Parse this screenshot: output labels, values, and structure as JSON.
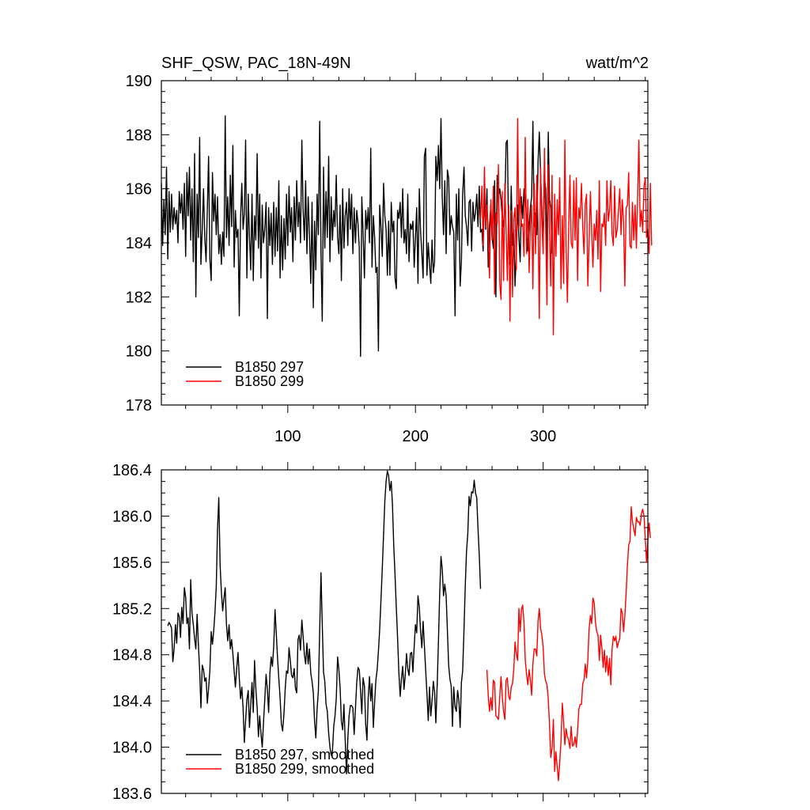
{
  "chart_data": [
    {
      "type": "line",
      "title": "SHF_QSW, PAC_18N-49N",
      "units": "watt/m^2",
      "xlim": [
        1,
        382
      ],
      "ylim": [
        178,
        190
      ],
      "x_ticks": [
        100,
        200,
        300
      ],
      "y_ticks": [
        178,
        180,
        182,
        184,
        186,
        188,
        190
      ],
      "y_tick_labels": [
        "178",
        "180",
        "182",
        "184",
        "186",
        "188",
        "190"
      ],
      "legend_position": "bottom-left",
      "series": [
        {
          "name": "B1850 297",
          "color": "#000000",
          "x_start": 1,
          "values": [
            186.2,
            183.9,
            185.6,
            184.3,
            186.8,
            183.4,
            185.9,
            184.4,
            185.8,
            184.5,
            185.3,
            184.7,
            185.2,
            184.0,
            185.9,
            185.1,
            185.8,
            184.5,
            186.2,
            183.5,
            186.6,
            185.0,
            186.8,
            184.1,
            186.0,
            183.3,
            187.3,
            182.0,
            185.8,
            184.2,
            187.9,
            183.2,
            184.5,
            186.0,
            184.2,
            183.3,
            185.2,
            187.2,
            183.4,
            182.6,
            186.6,
            184.8,
            185.8,
            184.3,
            185.7,
            183.6,
            184.3,
            183.2,
            184.4,
            183.5,
            188.7,
            184.2,
            185.7,
            183.9,
            186.5,
            184.6,
            187.6,
            183.1,
            185.2,
            184.2,
            184.5,
            181.3,
            184.9,
            186.2,
            184.5,
            185.1,
            187.8,
            182.7,
            185.8,
            184.2,
            183.0,
            185.8,
            182.6,
            185.0,
            184.1,
            187.3,
            183.8,
            185.8,
            182.7,
            185.4,
            184.0,
            184.5,
            185.5,
            181.2,
            185.3,
            183.9,
            185.1,
            183.2,
            185.5,
            183.5,
            185.3,
            183.7,
            186.3,
            182.7,
            185.0,
            183.0,
            184.9,
            183.4,
            185.8,
            183.9,
            186.1,
            184.4,
            185.3,
            183.3,
            185.7,
            184.1,
            186.3,
            184.6,
            185.5,
            184.0,
            187.8,
            185.2,
            184.1,
            186.3,
            183.6,
            185.7,
            184.3,
            182.5,
            185.5,
            181.6,
            184.8,
            183.0,
            185.8,
            184.3,
            188.5,
            183.6,
            181.1,
            186.8,
            183.8,
            185.9,
            184.2,
            187.2,
            183.3,
            185.7,
            184.1,
            185.2,
            184.6,
            186.5,
            184.2,
            183.6,
            185.4,
            182.6,
            186.0,
            183.8,
            185.0,
            185.5,
            183.9,
            186.0,
            184.5,
            185.8,
            183.6,
            185.3,
            184.0,
            185.2,
            184.7,
            183.8,
            179.8,
            185.7,
            184.4,
            182.7,
            185.2,
            184.5,
            185.3,
            184.0,
            187.5,
            183.1,
            185.0,
            184.2,
            182.9,
            183.1,
            180.0,
            185.4,
            184.6,
            183.5,
            186.2,
            185.0,
            184.5,
            182.8,
            184.8,
            182.8,
            185.5,
            184.4,
            184.8,
            182.7,
            182.3,
            185.2,
            184.9,
            185.5,
            184.2,
            186.0,
            184.0,
            184.5,
            183.6,
            185.8,
            183.3,
            184.7,
            184.5,
            184.8,
            183.1,
            184.2,
            185.3,
            182.5,
            186.0,
            184.4,
            183.6,
            182.7,
            187.2,
            187.5,
            182.8,
            184.0,
            183.2,
            182.5,
            184.1,
            182.9,
            183.3,
            187.2,
            186.3,
            187.6,
            186.0,
            188.6,
            185.7,
            184.3,
            186.3,
            183.6,
            186.7,
            186.4,
            184.3,
            185.0,
            184.6,
            184.4,
            181.3,
            185.8,
            184.1,
            186.0,
            182.4,
            183.3,
            185.8,
            186.8,
            185.0,
            184.6,
            183.9,
            185.5,
            185.6,
            183.7,
            185.5,
            184.8,
            185.1,
            185.8,
            184.6,
            186.1,
            184.4,
            184.5,
            183.7,
            185.9,
            184.5,
            186.0,
            183.1,
            184.6,
            185.4,
            184.2,
            183.8,
            186.3,
            182.0,
            186.5,
            185.7,
            186.0,
            185.6,
            184.9,
            184.6,
            185.3,
            187.7,
            187.8,
            184.0,
            183.2,
            186.1,
            183.9,
            184.5,
            182.4,
            183.7,
            185.4,
            184.2,
            183.3,
            185.7,
            184.9,
            186.0,
            185.7,
            184.9,
            183.7,
            184.6,
            185.3,
            185.7,
            188.5,
            184.6,
            185.1,
            184.3,
            187.0,
            188.1,
            186.5,
            185.3,
            184.0,
            186.4,
            186.0,
            183.3,
            188.1,
            185.6,
            185.3,
            183.6
          ]
        },
        {
          "name": "B1850 299",
          "color": "#ff0000",
          "x_start": 251,
          "values": [
            184.9,
            186.1,
            183.9,
            186.8,
            184.6,
            185.4,
            184.4,
            182.7,
            185.6,
            184.1,
            186.1,
            182.1,
            185.1,
            184.7,
            186.9,
            182.5,
            181.9,
            185.9,
            182.6,
            186.2,
            184.5,
            182.6,
            185.4,
            181.1,
            185.2,
            182.0,
            184.9,
            185.3,
            183.0,
            188.6,
            184.5,
            186.0,
            184.6,
            184.7,
            183.5,
            187.9,
            183.6,
            185.6,
            182.9,
            184.6,
            185.4,
            182.3,
            186.2,
            183.6,
            186.5,
            184.7,
            181.2,
            186.8,
            184.8,
            183.6,
            187.5,
            184.5,
            181.7,
            186.9,
            184.5,
            182.4,
            186.5,
            180.6,
            185.8,
            183.5,
            185.6,
            184.3,
            186.4,
            182.3,
            185.0,
            182.5,
            187.8,
            183.9,
            181.8,
            184.5,
            186.5,
            184.0,
            183.8,
            186.3,
            184.1,
            186.4,
            182.6,
            185.3,
            184.9,
            186.2,
            184.6,
            183.6,
            185.4,
            185.8,
            182.4,
            184.0,
            185.9,
            184.4,
            183.1,
            184.7,
            184.1,
            185.2,
            183.4,
            186.3,
            182.2,
            184.7,
            184.6,
            185.1,
            183.9,
            186.3,
            184.8,
            185.2,
            186.3,
            184.3,
            183.9,
            186.1,
            184.2,
            184.5,
            185.2,
            186.0,
            184.3,
            185.6,
            184.8,
            182.4,
            185.3,
            185.4,
            186.6,
            183.9,
            183.8,
            185.5,
            184.1,
            185.4,
            183.8,
            185.7,
            187.8,
            184.6,
            185.2,
            184.4,
            186.1,
            186.4,
            184.2,
            184.5,
            183.6,
            186.2,
            183.9
          ]
        }
      ],
      "legend": [
        {
          "label": "B1850 297",
          "color": "#000000"
        },
        {
          "label": "B1850 299",
          "color": "#ff0000"
        }
      ]
    },
    {
      "type": "line",
      "xlim": [
        1,
        382
      ],
      "ylim": [
        183.6,
        186.4
      ],
      "x_ticks": [
        100,
        200,
        300
      ],
      "y_ticks": [
        183.6,
        184.0,
        184.4,
        184.8,
        185.2,
        185.6,
        186.0,
        186.4
      ],
      "y_tick_labels": [
        "183.6",
        "184.0",
        "184.4",
        "184.8",
        "185.2",
        "185.6",
        "186.0",
        "186.4"
      ],
      "legend_position": "bottom-left",
      "series": [
        {
          "name": "B1850 297, smoothed",
          "color": "#000000",
          "x_start": 6,
          "values": [
            185.05,
            185.08,
            185.06,
            185.03,
            184.74,
            184.85,
            185.06,
            184.9,
            185.16,
            185.13,
            184.95,
            185.21,
            185.07,
            185.38,
            185.3,
            185.07,
            185.12,
            184.85,
            185.45,
            185.16,
            185.06,
            184.94,
            184.85,
            185.15,
            184.89,
            184.66,
            184.34,
            184.71,
            184.67,
            184.57,
            184.6,
            184.38,
            184.51,
            184.66,
            185.0,
            184.89,
            185.01,
            185.17,
            185.39,
            185.89,
            186.16,
            185.57,
            185.34,
            185.18,
            185.29,
            185.38,
            185.06,
            184.92,
            185.06,
            184.85,
            184.93,
            184.81,
            184.66,
            184.52,
            184.68,
            184.82,
            184.6,
            184.42,
            184.52,
            184.34,
            184.04,
            184.23,
            184.41,
            184.49,
            184.17,
            184.37,
            184.56,
            184.3,
            184.75,
            184.51,
            184.34,
            184.09,
            184.27,
            184.12,
            184.0,
            184.21,
            184.41,
            184.63,
            184.5,
            184.3,
            184.64,
            184.78,
            184.7,
            184.87,
            185.19,
            184.98,
            184.77,
            184.59,
            184.43,
            184.2,
            184.14,
            184.29,
            184.51,
            184.66,
            184.64,
            184.86,
            184.75,
            184.62,
            184.6,
            184.68,
            184.51,
            184.47,
            184.93,
            184.97,
            184.84,
            185.1,
            184.96,
            184.8,
            184.72,
            184.9,
            184.72,
            184.85,
            184.64,
            184.57,
            184.47,
            184.22,
            184.08,
            184.33,
            184.49,
            185.03,
            185.51,
            185.06,
            184.65,
            184.57,
            184.37,
            184.31,
            184.12,
            184.0,
            183.93,
            183.97,
            184.18,
            184.27,
            184.42,
            184.78,
            184.67,
            184.51,
            184.22,
            184.15,
            184.37,
            184.06,
            183.77,
            184.07,
            184.27,
            184.36,
            184.36,
            184.34,
            184.11,
            184.34,
            184.56,
            184.69,
            184.67,
            184.49,
            184.29,
            184.6,
            184.53,
            184.2,
            184.06,
            184.43,
            184.61,
            184.4,
            184.55,
            184.17,
            184.39,
            184.58,
            184.67,
            184.83,
            185.02,
            185.27,
            185.55,
            185.84,
            186.13,
            186.3,
            186.39,
            186.35,
            186.22,
            186.3,
            186.09,
            185.74,
            185.49,
            185.21,
            184.95,
            184.65,
            184.44,
            184.59,
            184.7,
            184.5,
            184.62,
            184.81,
            184.68,
            184.62,
            184.81,
            184.82,
            184.65,
            184.87,
            185.06,
            184.99,
            185.31,
            185.21,
            185.0,
            184.86,
            185.09,
            184.88,
            184.67,
            184.47,
            184.23,
            184.52,
            184.27,
            184.4,
            184.57,
            184.48,
            184.21,
            184.54,
            184.92,
            185.34,
            185.65,
            185.54,
            185.31,
            185.41,
            185.31,
            185.01,
            184.71,
            184.59,
            184.53,
            184.18,
            184.52,
            184.35,
            184.31,
            184.49,
            184.41,
            184.17,
            184.56,
            184.66,
            185.02,
            185.4,
            185.7,
            185.85,
            186.17,
            186.09,
            186.21,
            186.2,
            186.31,
            186.2,
            186.16,
            185.89,
            185.66,
            185.37
          ]
        },
        {
          "name": "B1850 299, smoothed",
          "color": "#ff0000",
          "x_start": 256,
          "values": [
            184.67,
            184.45,
            184.31,
            184.43,
            184.32,
            184.58,
            184.56,
            184.27,
            184.26,
            184.24,
            184.44,
            184.61,
            184.44,
            184.31,
            184.24,
            184.58,
            184.6,
            184.44,
            184.41,
            184.52,
            184.55,
            184.67,
            184.91,
            184.81,
            184.75,
            185.2,
            185.0,
            185.19,
            185.23,
            185.08,
            184.76,
            184.63,
            184.54,
            184.67,
            184.58,
            184.45,
            184.72,
            184.85,
            184.85,
            184.79,
            185.09,
            185.2,
            185.03,
            184.97,
            184.87,
            184.63,
            184.57,
            184.54,
            184.42,
            184.19,
            183.91,
            183.99,
            184.24,
            183.79,
            183.96,
            183.83,
            183.71,
            183.87,
            184.05,
            184.38,
            184.22,
            184.02,
            184.16,
            184.09,
            184.06,
            183.99,
            184.18,
            184.01,
            184.02,
            184.09,
            184.0,
            184.15,
            184.33,
            184.37,
            184.37,
            184.55,
            184.58,
            184.72,
            184.6,
            184.75,
            185.02,
            185.14,
            185.07,
            185.29,
            185.25,
            185.08,
            185.0,
            184.97,
            184.75,
            184.97,
            184.86,
            184.69,
            184.84,
            184.65,
            184.79,
            184.62,
            184.77,
            184.54,
            184.85,
            184.96,
            184.92,
            184.96,
            184.86,
            184.91,
            184.94,
            185.2,
            185.16,
            185.0,
            185.13,
            185.34,
            185.58,
            185.75,
            185.78,
            186.08,
            185.95,
            185.89,
            185.83,
            185.99,
            185.95,
            185.95,
            185.92,
            186.02,
            186.06,
            186.0,
            185.8,
            185.6,
            185.79,
            185.94,
            185.81
          ]
        }
      ],
      "legend": [
        {
          "label": "B1850 297, smoothed",
          "color": "#000000"
        },
        {
          "label": "B1850 299, smoothed",
          "color": "#ff0000"
        }
      ]
    }
  ]
}
